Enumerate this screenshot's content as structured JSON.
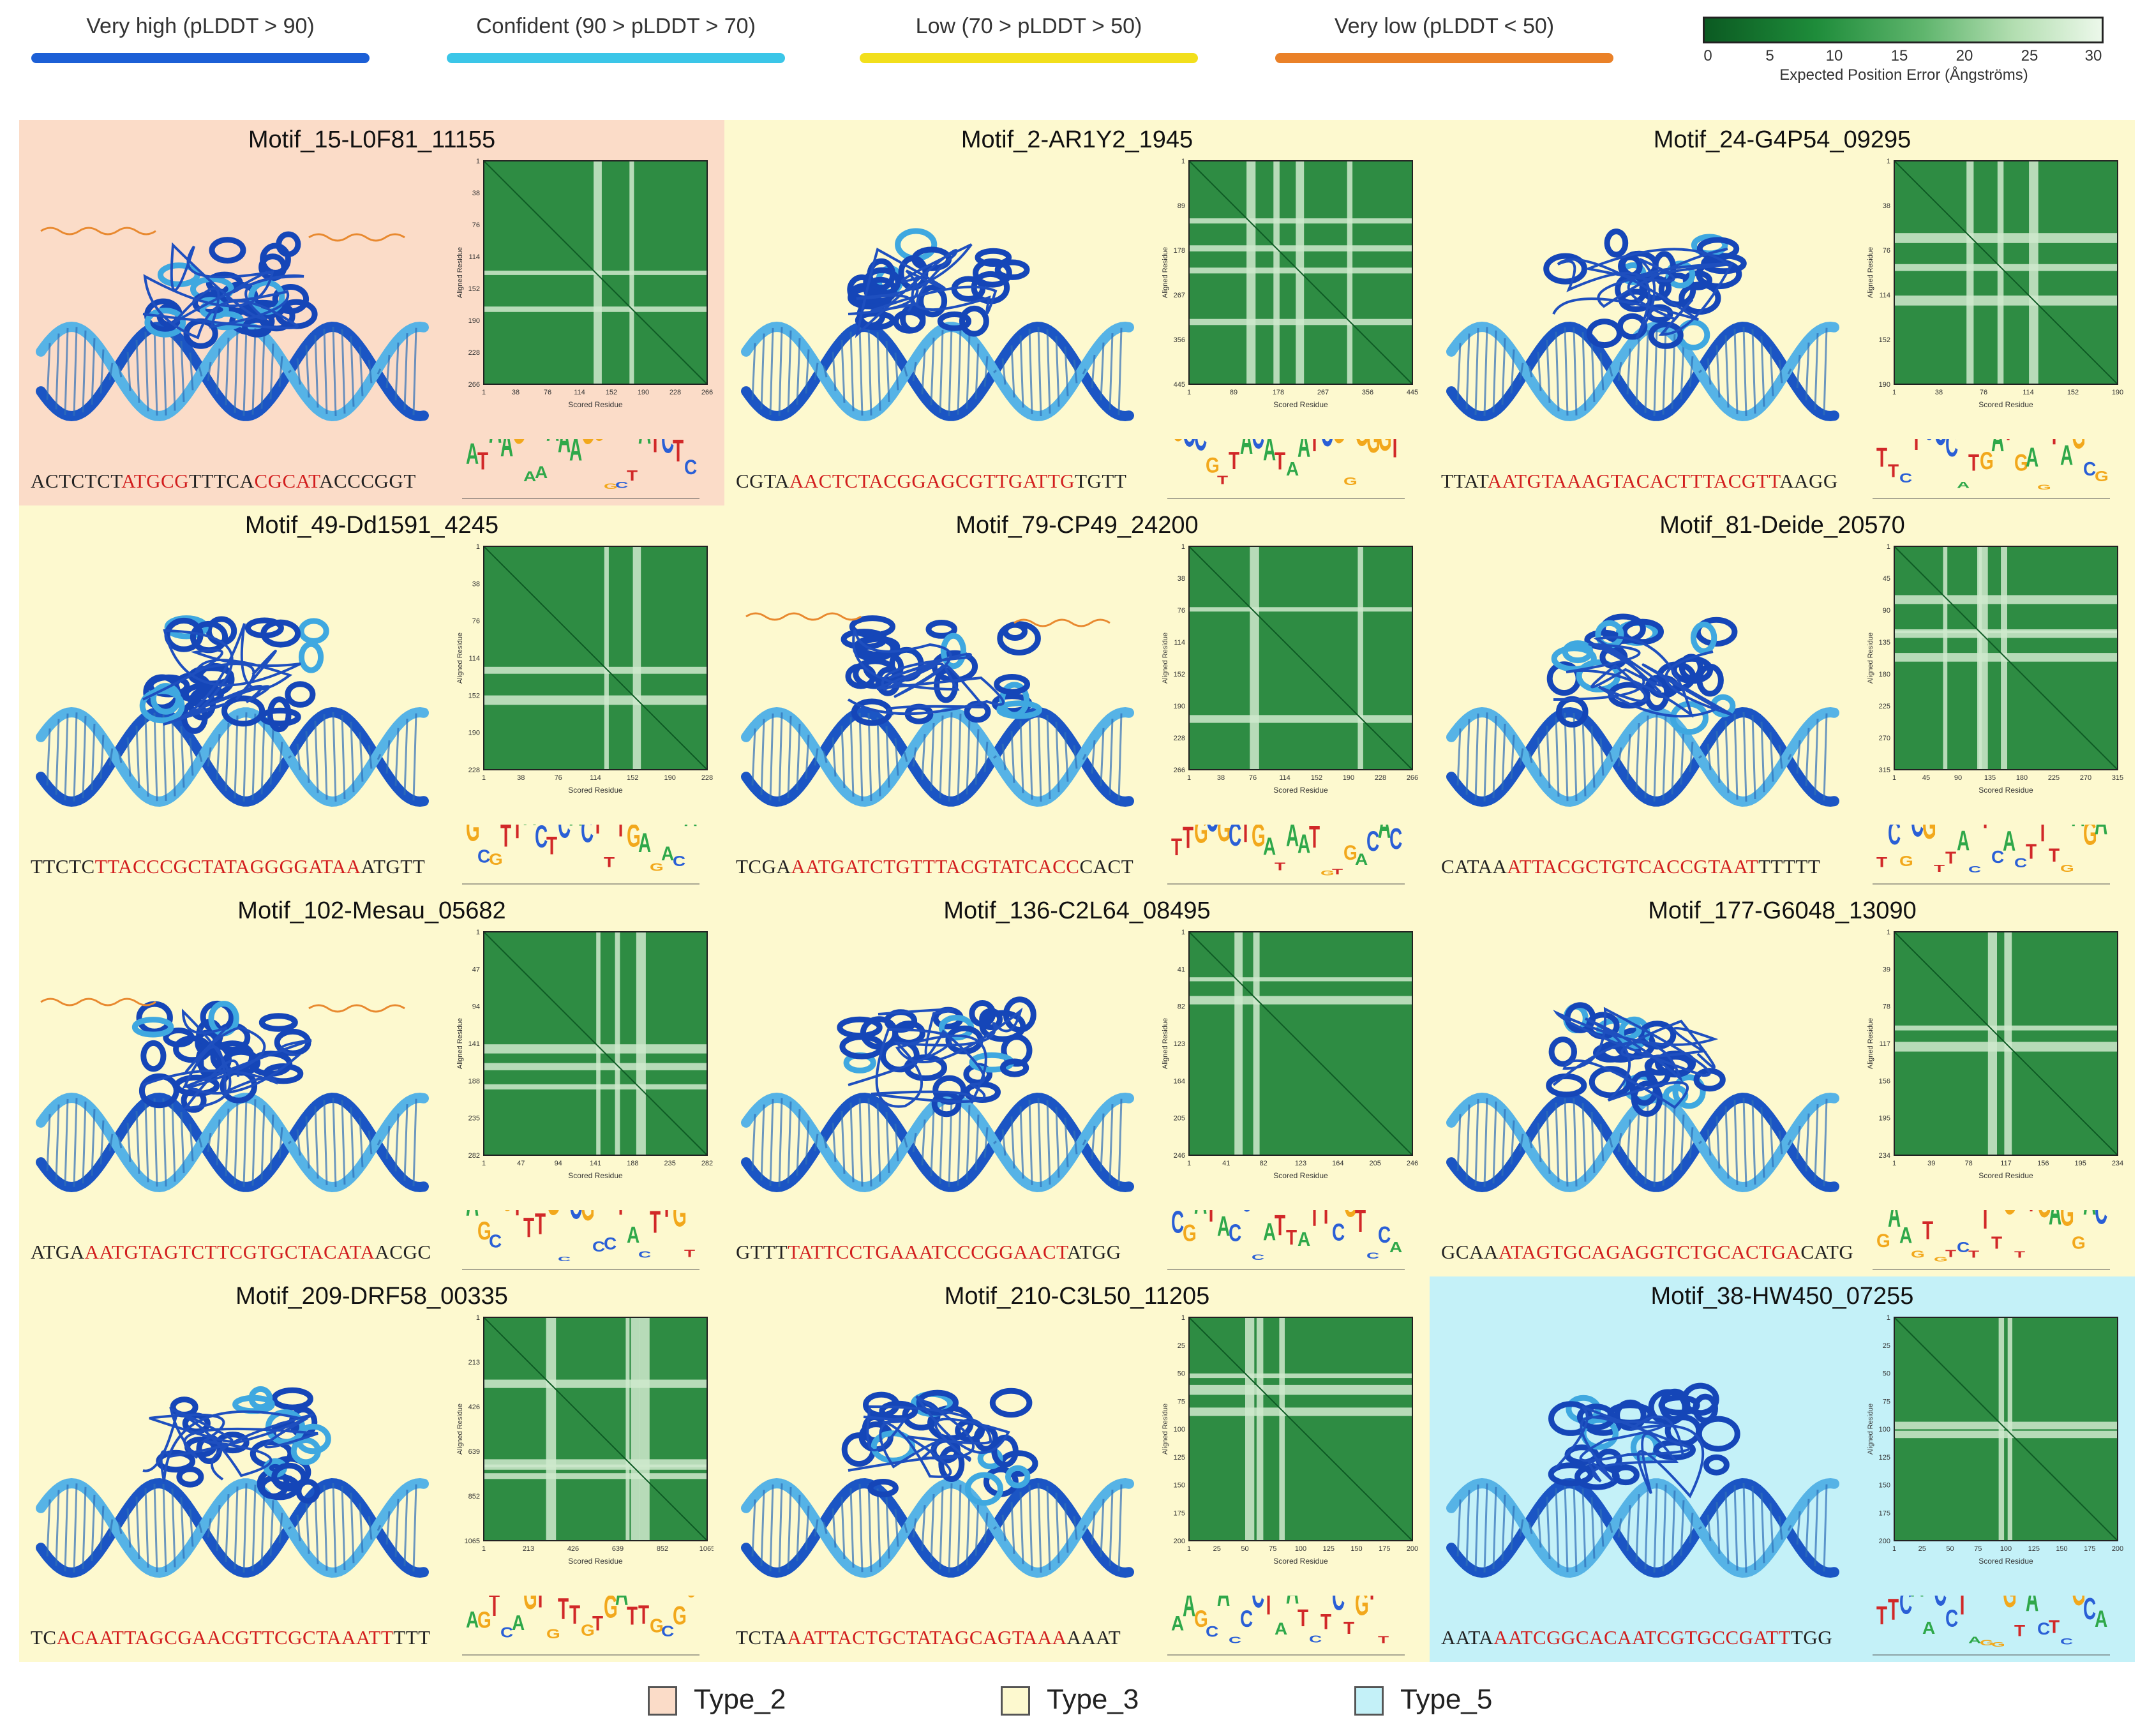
{
  "plddt_legend": [
    {
      "label": "Very high (pLDDT > 90)",
      "color": "#1c5fd6"
    },
    {
      "label": "Confident (90 > pLDDT > 70)",
      "color": "#3bc6e8"
    },
    {
      "label": "Low (70 > pLDDT > 50)",
      "color": "#f2df1c"
    },
    {
      "label": "Very low (pLDDT < 50)",
      "color": "#ea8128"
    }
  ],
  "pae_legend": {
    "ticks": [
      "0",
      "5",
      "10",
      "15",
      "20",
      "25",
      "30"
    ],
    "title": "Expected Position Error (Ångströms)"
  },
  "heatmap_axes": {
    "y_label": "Aligned Residue",
    "x_label": "Scored Residue"
  },
  "type_colors": {
    "Type_2": "#fbdcc8",
    "Type_3": "#fdf9cf",
    "Type_5": "#c4f1f8"
  },
  "panels": [
    {
      "title": "Motif_15-L0F81_11155",
      "type": "Type_2",
      "ticks": [
        "1",
        "38",
        "76",
        "114",
        "152",
        "190",
        "228",
        "266"
      ],
      "seq": [
        {
          "t": "ACTCTCT",
          "r": false
        },
        {
          "t": "ATGCG",
          "r": true
        },
        {
          "t": "TTTCA",
          "r": false
        },
        {
          "t": "CGCAT",
          "r": true
        },
        {
          "t": "ACCCGGT",
          "r": false
        }
      ]
    },
    {
      "title": "Motif_2-AR1Y2_1945",
      "type": "Type_3",
      "ticks": [
        "1",
        "89",
        "178",
        "267",
        "356",
        "445"
      ],
      "seq": [
        {
          "t": "CGTA",
          "r": false
        },
        {
          "t": "AACTCTACGGAGCGTTGATTG",
          "r": true
        },
        {
          "t": "TGTT",
          "r": false
        }
      ]
    },
    {
      "title": "Motif_24-G4P54_09295",
      "type": "Type_3",
      "ticks": [
        "1",
        "38",
        "76",
        "114",
        "152",
        "190"
      ],
      "seq": [
        {
          "t": "TTAT",
          "r": false
        },
        {
          "t": "AATGTAAAGTACACTTTACGTT",
          "r": true
        },
        {
          "t": "AAGG",
          "r": false
        }
      ]
    },
    {
      "title": "Motif_49-Dd1591_4245",
      "type": "Type_3",
      "ticks": [
        "1",
        "38",
        "76",
        "114",
        "152",
        "190",
        "228"
      ],
      "seq": [
        {
          "t": "TTCTC",
          "r": false
        },
        {
          "t": "TTACCCGCTATAGGGGATAA",
          "r": true
        },
        {
          "t": "ATGTT",
          "r": false
        }
      ]
    },
    {
      "title": "Motif_79-CP49_24200",
      "type": "Type_3",
      "ticks": [
        "1",
        "38",
        "76",
        "114",
        "152",
        "190",
        "228",
        "266"
      ],
      "seq": [
        {
          "t": "TCGA",
          "r": false
        },
        {
          "t": "AATGATCTGTTTACGTATCACC",
          "r": true
        },
        {
          "t": "CACT",
          "r": false
        }
      ]
    },
    {
      "title": "Motif_81-Deide_20570",
      "type": "Type_3",
      "ticks": [
        "1",
        "45",
        "90",
        "135",
        "180",
        "225",
        "270",
        "315"
      ],
      "seq": [
        {
          "t": "CATAA",
          "r": false
        },
        {
          "t": "ATTACGCTGTCACCGTAAT",
          "r": true
        },
        {
          "t": "TTTTT",
          "r": false
        }
      ]
    },
    {
      "title": "Motif_102-Mesau_05682",
      "type": "Type_3",
      "ticks": [
        "1",
        "47",
        "94",
        "141",
        "188",
        "235",
        "282"
      ],
      "seq": [
        {
          "t": "ATGA",
          "r": false
        },
        {
          "t": "AATGTAGTCTTCGTGCTACATA",
          "r": true
        },
        {
          "t": "ACGC",
          "r": false
        }
      ]
    },
    {
      "title": "Motif_136-C2L64_08495",
      "type": "Type_3",
      "ticks": [
        "1",
        "41",
        "82",
        "123",
        "164",
        "205",
        "246"
      ],
      "seq": [
        {
          "t": "GTTT",
          "r": false
        },
        {
          "t": "TATTCCTGAAATCCCGGAACT",
          "r": true
        },
        {
          "t": "ATGG",
          "r": false
        }
      ]
    },
    {
      "title": "Motif_177-G6048_13090",
      "type": "Type_3",
      "ticks": [
        "1",
        "39",
        "78",
        "117",
        "156",
        "195",
        "234"
      ],
      "seq": [
        {
          "t": "GCAA",
          "r": false
        },
        {
          "t": "ATAGTGCAGAGGTCTGCACTGA",
          "r": true
        },
        {
          "t": "CATG",
          "r": false
        }
      ]
    },
    {
      "title": "Motif_209-DRF58_00335",
      "type": "Type_3",
      "ticks": [
        "1",
        "213",
        "426",
        "639",
        "852",
        "1065"
      ],
      "seq": [
        {
          "t": "TC",
          "r": false
        },
        {
          "t": "ACAATTAGCGAACGTTCGCTAAATT",
          "r": true
        },
        {
          "t": "TTT",
          "r": false
        }
      ]
    },
    {
      "title": "Motif_210-C3L50_11205",
      "type": "Type_3",
      "ticks": [
        "1",
        "25",
        "50",
        "75",
        "100",
        "125",
        "150",
        "175",
        "200"
      ],
      "seq": [
        {
          "t": "TCTA",
          "r": false
        },
        {
          "t": "AATTACTGCTATAGCAGTAAA",
          "r": true
        },
        {
          "t": "AAAT",
          "r": false
        }
      ]
    },
    {
      "title": "Motif_38-HW450_07255",
      "type": "Type_5",
      "ticks": [
        "1",
        "25",
        "50",
        "75",
        "100",
        "125",
        "150",
        "175",
        "200"
      ],
      "seq": [
        {
          "t": "AATA",
          "r": false
        },
        {
          "t": "AATCGGCACAATCGTGCCGATT",
          "r": true
        },
        {
          "t": "TGG",
          "r": false
        }
      ]
    }
  ],
  "bottom_legend": [
    {
      "label": "Type_2",
      "color": "#fbdcc8"
    },
    {
      "label": "Type_3",
      "color": "#fdf9cf"
    },
    {
      "label": "Type_5",
      "color": "#c4f1f8"
    }
  ]
}
